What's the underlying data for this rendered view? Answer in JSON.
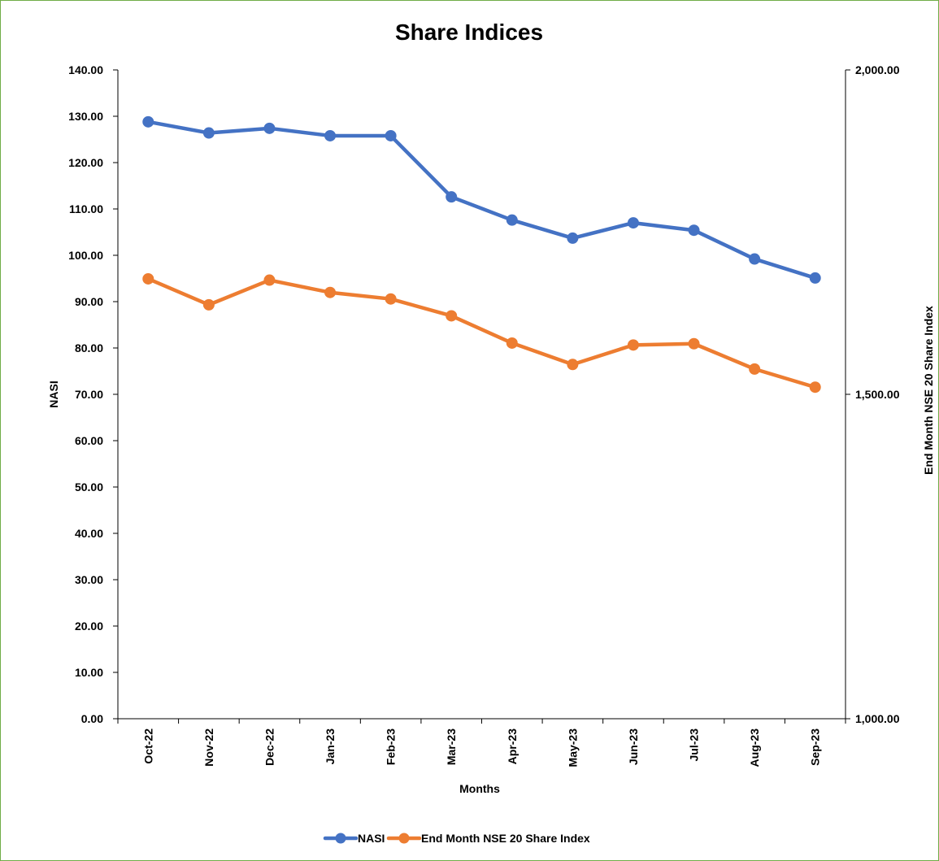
{
  "chart_data": {
    "type": "line",
    "title": "Share Indices",
    "xlabel": "Months",
    "ylabel_left": "NASI",
    "ylabel_right": "End Month NSE 20 Share Index",
    "categories": [
      "Oct-22",
      "Nov-22",
      "Dec-22",
      "Jan-23",
      "Feb-23",
      "Mar-23",
      "Apr-23",
      "May-23",
      "Jun-23",
      "Jul-23",
      "Aug-23",
      "Sep-23"
    ],
    "y_left": {
      "min": 0,
      "max": 140,
      "step": 10,
      "ticks": [
        "0.00",
        "10.00",
        "20.00",
        "30.00",
        "40.00",
        "50.00",
        "60.00",
        "70.00",
        "80.00",
        "90.00",
        "100.00",
        "110.00",
        "120.00",
        "130.00",
        "140.00"
      ]
    },
    "y_right": {
      "min": 1000,
      "max": 2000,
      "step": 500,
      "ticks": [
        "1,000.00",
        "1,500.00",
        "2,000.00"
      ]
    },
    "series": [
      {
        "name": "NASI",
        "axis": "left",
        "color": "#4472c4",
        "values": [
          128.8,
          126.4,
          127.4,
          125.8,
          125.8,
          112.6,
          107.6,
          103.7,
          107.0,
          105.4,
          99.2,
          95.1
        ]
      },
      {
        "name": "End Month NSE 20 Share Index",
        "axis": "right",
        "color": "#ed7d31",
        "values": [
          1678,
          1638,
          1676,
          1657,
          1647,
          1621,
          1579,
          1546,
          1576,
          1578,
          1539,
          1511
        ]
      }
    ],
    "legend_position": "bottom",
    "grid": false
  }
}
